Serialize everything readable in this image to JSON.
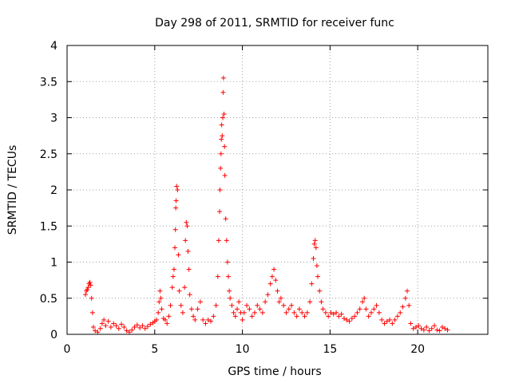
{
  "chart_data": {
    "type": "scatter",
    "title": "Day 298 of 2011, SRMTID for receiver func",
    "xlabel": "GPS time / hours",
    "ylabel": "SRMTID / TECUs",
    "xlim": [
      0,
      24
    ],
    "ylim": [
      0,
      4
    ],
    "grid": true,
    "marker": "+",
    "marker_color": "#ff0000",
    "x_ticks": [
      {
        "value": 0,
        "label": "0"
      },
      {
        "value": 5,
        "label": "5"
      },
      {
        "value": 10,
        "label": "10"
      },
      {
        "value": 15,
        "label": "15"
      },
      {
        "value": 20,
        "label": "20"
      }
    ],
    "y_ticks": [
      {
        "value": 0,
        "label": "0"
      },
      {
        "value": 0.5,
        "label": "0.5"
      },
      {
        "value": 1,
        "label": "1"
      },
      {
        "value": 1.5,
        "label": "1.5"
      },
      {
        "value": 2,
        "label": "2"
      },
      {
        "value": 2.5,
        "label": "2.5"
      },
      {
        "value": 3,
        "label": "3"
      },
      {
        "value": 3.5,
        "label": "3.5"
      },
      {
        "value": 4,
        "label": "4"
      }
    ],
    "series": [
      {
        "name": "SRMTID",
        "points": [
          [
            1.05,
            0.55
          ],
          [
            1.1,
            0.6
          ],
          [
            1.15,
            0.62
          ],
          [
            1.2,
            0.65
          ],
          [
            1.25,
            0.7
          ],
          [
            1.3,
            0.72
          ],
          [
            1.35,
            0.68
          ],
          [
            1.4,
            0.5
          ],
          [
            1.45,
            0.3
          ],
          [
            1.5,
            0.1
          ],
          [
            1.6,
            0.05
          ],
          [
            1.75,
            0.03
          ],
          [
            1.9,
            0.08
          ],
          [
            2.0,
            0.15
          ],
          [
            2.1,
            0.2
          ],
          [
            2.2,
            0.12
          ],
          [
            2.35,
            0.18
          ],
          [
            2.5,
            0.1
          ],
          [
            2.65,
            0.15
          ],
          [
            2.8,
            0.12
          ],
          [
            2.95,
            0.08
          ],
          [
            3.1,
            0.14
          ],
          [
            3.25,
            0.1
          ],
          [
            3.4,
            0.05
          ],
          [
            3.55,
            0.03
          ],
          [
            3.7,
            0.06
          ],
          [
            3.85,
            0.1
          ],
          [
            4.0,
            0.13
          ],
          [
            4.15,
            0.09
          ],
          [
            4.3,
            0.12
          ],
          [
            4.45,
            0.08
          ],
          [
            4.6,
            0.11
          ],
          [
            4.75,
            0.14
          ],
          [
            4.9,
            0.16
          ],
          [
            5.0,
            0.18
          ],
          [
            5.1,
            0.2
          ],
          [
            5.2,
            0.3
          ],
          [
            5.25,
            0.45
          ],
          [
            5.3,
            0.6
          ],
          [
            5.35,
            0.5
          ],
          [
            5.4,
            0.35
          ],
          [
            5.5,
            0.22
          ],
          [
            5.6,
            0.2
          ],
          [
            5.7,
            0.15
          ],
          [
            5.8,
            0.25
          ],
          [
            5.9,
            0.4
          ],
          [
            6.0,
            0.65
          ],
          [
            6.05,
            0.8
          ],
          [
            6.1,
            0.9
          ],
          [
            6.15,
            1.2
          ],
          [
            6.18,
            1.45
          ],
          [
            6.2,
            1.75
          ],
          [
            6.22,
            1.85
          ],
          [
            6.25,
            2.05
          ],
          [
            6.3,
            2.0
          ],
          [
            6.35,
            1.1
          ],
          [
            6.4,
            0.6
          ],
          [
            6.5,
            0.4
          ],
          [
            6.6,
            0.3
          ],
          [
            6.7,
            0.65
          ],
          [
            6.75,
            1.3
          ],
          [
            6.8,
            1.55
          ],
          [
            6.85,
            1.5
          ],
          [
            6.9,
            1.15
          ],
          [
            6.95,
            0.9
          ],
          [
            7.0,
            0.55
          ],
          [
            7.1,
            0.35
          ],
          [
            7.2,
            0.25
          ],
          [
            7.3,
            0.2
          ],
          [
            7.45,
            0.35
          ],
          [
            7.6,
            0.45
          ],
          [
            7.75,
            0.2
          ],
          [
            7.9,
            0.15
          ],
          [
            8.05,
            0.2
          ],
          [
            8.2,
            0.18
          ],
          [
            8.35,
            0.25
          ],
          [
            8.5,
            0.4
          ],
          [
            8.6,
            0.8
          ],
          [
            8.65,
            1.3
          ],
          [
            8.7,
            1.7
          ],
          [
            8.72,
            2.0
          ],
          [
            8.75,
            2.3
          ],
          [
            8.78,
            2.5
          ],
          [
            8.8,
            2.7
          ],
          [
            8.82,
            2.9
          ],
          [
            8.85,
            2.75
          ],
          [
            8.88,
            3.0
          ],
          [
            8.9,
            3.35
          ],
          [
            8.92,
            3.55
          ],
          [
            8.95,
            3.05
          ],
          [
            8.98,
            2.6
          ],
          [
            9.0,
            2.2
          ],
          [
            9.05,
            1.6
          ],
          [
            9.1,
            1.3
          ],
          [
            9.15,
            1.0
          ],
          [
            9.2,
            0.8
          ],
          [
            9.25,
            0.6
          ],
          [
            9.3,
            0.5
          ],
          [
            9.4,
            0.4
          ],
          [
            9.5,
            0.3
          ],
          [
            9.6,
            0.25
          ],
          [
            9.7,
            0.35
          ],
          [
            9.8,
            0.45
          ],
          [
            9.9,
            0.3
          ],
          [
            10.0,
            0.2
          ],
          [
            10.1,
            0.3
          ],
          [
            10.25,
            0.4
          ],
          [
            10.4,
            0.35
          ],
          [
            10.55,
            0.25
          ],
          [
            10.7,
            0.3
          ],
          [
            10.85,
            0.4
          ],
          [
            11.0,
            0.35
          ],
          [
            11.15,
            0.3
          ],
          [
            11.3,
            0.45
          ],
          [
            11.45,
            0.55
          ],
          [
            11.6,
            0.7
          ],
          [
            11.7,
            0.8
          ],
          [
            11.8,
            0.9
          ],
          [
            11.9,
            0.75
          ],
          [
            12.0,
            0.6
          ],
          [
            12.1,
            0.45
          ],
          [
            12.2,
            0.5
          ],
          [
            12.35,
            0.4
          ],
          [
            12.5,
            0.3
          ],
          [
            12.65,
            0.35
          ],
          [
            12.8,
            0.4
          ],
          [
            12.95,
            0.3
          ],
          [
            13.1,
            0.25
          ],
          [
            13.25,
            0.35
          ],
          [
            13.4,
            0.3
          ],
          [
            13.55,
            0.25
          ],
          [
            13.7,
            0.3
          ],
          [
            13.85,
            0.45
          ],
          [
            13.95,
            0.7
          ],
          [
            14.05,
            1.05
          ],
          [
            14.1,
            1.25
          ],
          [
            14.15,
            1.3
          ],
          [
            14.2,
            1.2
          ],
          [
            14.25,
            0.95
          ],
          [
            14.3,
            0.8
          ],
          [
            14.4,
            0.6
          ],
          [
            14.5,
            0.45
          ],
          [
            14.6,
            0.35
          ],
          [
            14.75,
            0.3
          ],
          [
            14.9,
            0.25
          ],
          [
            15.05,
            0.3
          ],
          [
            15.2,
            0.28
          ],
          [
            15.35,
            0.3
          ],
          [
            15.5,
            0.25
          ],
          [
            15.65,
            0.28
          ],
          [
            15.8,
            0.22
          ],
          [
            15.95,
            0.2
          ],
          [
            16.1,
            0.18
          ],
          [
            16.25,
            0.22
          ],
          [
            16.4,
            0.25
          ],
          [
            16.55,
            0.3
          ],
          [
            16.7,
            0.35
          ],
          [
            16.85,
            0.45
          ],
          [
            16.95,
            0.5
          ],
          [
            17.05,
            0.35
          ],
          [
            17.2,
            0.25
          ],
          [
            17.35,
            0.3
          ],
          [
            17.5,
            0.35
          ],
          [
            17.65,
            0.4
          ],
          [
            17.8,
            0.3
          ],
          [
            17.95,
            0.2
          ],
          [
            18.1,
            0.15
          ],
          [
            18.25,
            0.18
          ],
          [
            18.4,
            0.2
          ],
          [
            18.55,
            0.15
          ],
          [
            18.7,
            0.2
          ],
          [
            18.85,
            0.25
          ],
          [
            19.0,
            0.3
          ],
          [
            19.15,
            0.38
          ],
          [
            19.3,
            0.5
          ],
          [
            19.4,
            0.6
          ],
          [
            19.5,
            0.4
          ],
          [
            19.6,
            0.15
          ],
          [
            19.75,
            0.08
          ],
          [
            19.9,
            0.1
          ],
          [
            20.05,
            0.12
          ],
          [
            20.2,
            0.08
          ],
          [
            20.35,
            0.06
          ],
          [
            20.5,
            0.1
          ],
          [
            20.65,
            0.05
          ],
          [
            20.8,
            0.08
          ],
          [
            20.95,
            0.12
          ],
          [
            21.1,
            0.06
          ],
          [
            21.25,
            0.05
          ],
          [
            21.4,
            0.1
          ],
          [
            21.55,
            0.08
          ],
          [
            21.7,
            0.06
          ]
        ]
      }
    ]
  }
}
